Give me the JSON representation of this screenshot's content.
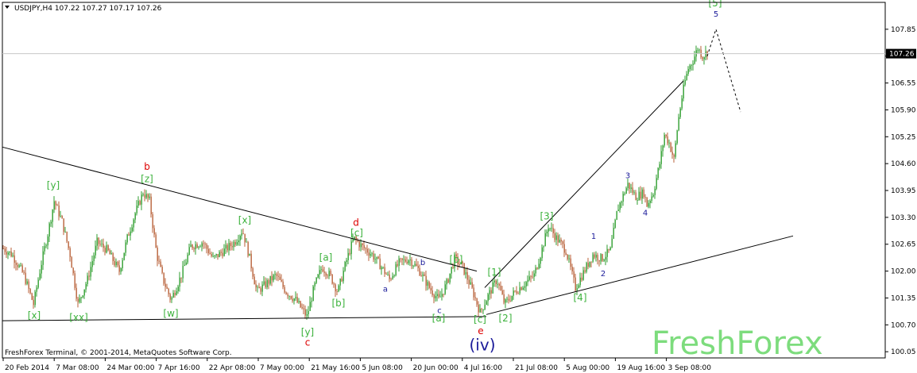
{
  "chart_data": {
    "type": "candlestick",
    "symbol_header": "USDJPY,H4  107.22 107.27 107.17 107.26",
    "copyright": "FreshForex Terminal, © 2001-2014, MetaQuotes Software Corp.",
    "brand": "FreshForex",
    "current_price": "107.26",
    "current_price_value": 107.26,
    "ylim": [
      99.9,
      108.5
    ],
    "y_ticks": [
      "107.85",
      "107.20",
      "106.55",
      "105.90",
      "105.25",
      "104.60",
      "103.95",
      "103.30",
      "102.65",
      "102.00",
      "101.35",
      "100.70",
      "100.05"
    ],
    "y_tick_values": [
      107.85,
      107.2,
      106.55,
      105.9,
      105.25,
      104.6,
      103.95,
      103.3,
      102.65,
      102.0,
      101.35,
      100.7,
      100.05
    ],
    "x_ticks": [
      "20 Feb 2014",
      "7 Mar 08:00",
      "24 Mar 00:00",
      "7 Apr 16:00",
      "22 Apr 08:00",
      "7 May 00:00",
      "21 May 16:00",
      "5 Jun 08:00",
      "20 Jun 00:00",
      "4 Jul 16:00",
      "21 Jul 08:00",
      "5 Aug 00:00",
      "19 Aug 16:00",
      "3 Sep 08:00"
    ],
    "price_path": [
      [
        0,
        102.6
      ],
      [
        15,
        102.4
      ],
      [
        30,
        101.9
      ],
      [
        42,
        101.2
      ],
      [
        52,
        102.2
      ],
      [
        60,
        102.9
      ],
      [
        68,
        103.7
      ],
      [
        78,
        103.2
      ],
      [
        88,
        102.4
      ],
      [
        98,
        101.2
      ],
      [
        110,
        101.8
      ],
      [
        122,
        102.7
      ],
      [
        135,
        102.5
      ],
      [
        150,
        102.0
      ],
      [
        160,
        102.8
      ],
      [
        170,
        103.4
      ],
      [
        180,
        103.9
      ],
      [
        188,
        103.7
      ],
      [
        197,
        102.4
      ],
      [
        205,
        101.8
      ],
      [
        215,
        101.3
      ],
      [
        228,
        101.9
      ],
      [
        240,
        102.6
      ],
      [
        255,
        102.7
      ],
      [
        268,
        102.3
      ],
      [
        282,
        102.5
      ],
      [
        295,
        102.7
      ],
      [
        305,
        103.0
      ],
      [
        313,
        102.4
      ],
      [
        323,
        101.5
      ],
      [
        335,
        101.7
      ],
      [
        347,
        101.9
      ],
      [
        360,
        101.5
      ],
      [
        372,
        101.3
      ],
      [
        386,
        100.9
      ],
      [
        395,
        101.6
      ],
      [
        405,
        102.1
      ],
      [
        415,
        101.9
      ],
      [
        425,
        101.5
      ],
      [
        435,
        102.2
      ],
      [
        445,
        102.8
      ],
      [
        455,
        102.6
      ],
      [
        468,
        102.4
      ],
      [
        480,
        102.1
      ],
      [
        490,
        101.8
      ],
      [
        502,
        102.2
      ],
      [
        515,
        102.3
      ],
      [
        528,
        102.0
      ],
      [
        540,
        101.6
      ],
      [
        552,
        101.3
      ],
      [
        562,
        101.7
      ],
      [
        572,
        102.3
      ],
      [
        582,
        102.1
      ],
      [
        595,
        101.5
      ],
      [
        604,
        101.0
      ],
      [
        614,
        101.4
      ],
      [
        625,
        101.8
      ],
      [
        635,
        101.2
      ],
      [
        648,
        101.5
      ],
      [
        660,
        101.7
      ],
      [
        672,
        101.9
      ],
      [
        680,
        102.4
      ],
      [
        690,
        103.1
      ],
      [
        700,
        102.8
      ],
      [
        712,
        102.5
      ],
      [
        724,
        101.6
      ],
      [
        735,
        102.0
      ],
      [
        746,
        102.4
      ],
      [
        757,
        102.3
      ],
      [
        768,
        102.5
      ],
      [
        777,
        103.5
      ],
      [
        790,
        104.1
      ],
      [
        800,
        103.8
      ],
      [
        810,
        103.9
      ],
      [
        814,
        103.6
      ],
      [
        822,
        103.9
      ],
      [
        830,
        104.6
      ],
      [
        836,
        105.3
      ],
      [
        842,
        105.1
      ],
      [
        848,
        104.7
      ],
      [
        853,
        105.6
      ],
      [
        858,
        106.2
      ],
      [
        862,
        106.6
      ],
      [
        866,
        106.9
      ],
      [
        872,
        107.1
      ],
      [
        878,
        107.4
      ],
      [
        884,
        107.2
      ],
      [
        890,
        107.3
      ]
    ],
    "projection": [
      [
        890,
        107.2
      ],
      [
        901,
        107.85
      ],
      [
        932,
        105.85
      ]
    ],
    "trendlines": [
      {
        "name": "upper-triangle-line",
        "from": [
          3,
          105.0
        ],
        "to": [
          600,
          102.0
        ]
      },
      {
        "name": "lower-triangle-line",
        "from": [
          3,
          100.8
        ],
        "to": [
          612,
          100.9
        ]
      },
      {
        "name": "rising-support-line",
        "from": [
          612,
          100.95
        ],
        "to": [
          998,
          102.85
        ]
      },
      {
        "name": "rising-channel-line",
        "from": [
          610,
          101.6
        ],
        "to": [
          860,
          106.6
        ]
      }
    ],
    "wave_labels": [
      {
        "text": "[y]",
        "x": 67,
        "y": 104.0,
        "color": "#3cb23c",
        "size": "m"
      },
      {
        "text": "[x]",
        "x": 43,
        "y": 100.85,
        "color": "#3cb23c",
        "size": "m"
      },
      {
        "text": "[xx]",
        "x": 99,
        "y": 100.8,
        "color": "#3cb23c",
        "size": "m"
      },
      {
        "text": "b",
        "x": 185,
        "y": 104.45,
        "color": "#dd0000",
        "size": "m"
      },
      {
        "text": "[z]",
        "x": 185,
        "y": 104.15,
        "color": "#3cb23c",
        "size": "m"
      },
      {
        "text": "[w]",
        "x": 215,
        "y": 100.9,
        "color": "#3cb23c",
        "size": "m"
      },
      {
        "text": "[x]",
        "x": 308,
        "y": 103.15,
        "color": "#3cb23c",
        "size": "m"
      },
      {
        "text": "d",
        "x": 448,
        "y": 103.1,
        "color": "#dd0000",
        "size": "m"
      },
      {
        "text": "[c]",
        "x": 449,
        "y": 102.85,
        "color": "#3cb23c",
        "size": "m"
      },
      {
        "text": "[a]",
        "x": 410,
        "y": 102.25,
        "color": "#3cb23c",
        "size": "m"
      },
      {
        "text": "[b]",
        "x": 426,
        "y": 101.15,
        "color": "#3cb23c",
        "size": "m"
      },
      {
        "text": "[y]",
        "x": 387,
        "y": 100.45,
        "color": "#3cb23c",
        "size": "m"
      },
      {
        "text": "c",
        "x": 387,
        "y": 100.2,
        "color": "#dd0000",
        "size": "m"
      },
      {
        "text": "a",
        "x": 485,
        "y": 101.5,
        "color": "#1a1a99",
        "size": "s"
      },
      {
        "text": "b",
        "x": 532,
        "y": 102.15,
        "color": "#1a1a99",
        "size": "s"
      },
      {
        "text": "c",
        "x": 553,
        "y": 100.98,
        "color": "#1a1a99",
        "size": "s"
      },
      {
        "text": "[a]",
        "x": 552,
        "y": 100.78,
        "color": "#3cb23c",
        "size": "m"
      },
      {
        "text": "[b]",
        "x": 574,
        "y": 102.2,
        "color": "#3cb23c",
        "size": "m"
      },
      {
        "text": "[c]",
        "x": 604,
        "y": 100.75,
        "color": "#3cb23c",
        "size": "m"
      },
      {
        "text": "e",
        "x": 605,
        "y": 100.48,
        "color": "#dd0000",
        "size": "m"
      },
      {
        "text": "(iv)",
        "x": 607,
        "y": 100.08,
        "color": "#1a1a99",
        "size": "l"
      },
      {
        "text": "[1]",
        "x": 622,
        "y": 101.9,
        "color": "#3cb23c",
        "size": "m"
      },
      {
        "text": "[2]",
        "x": 636,
        "y": 100.78,
        "color": "#3cb23c",
        "size": "m"
      },
      {
        "text": "[3]",
        "x": 688,
        "y": 103.25,
        "color": "#3cb23c",
        "size": "m"
      },
      {
        "text": "[4]",
        "x": 730,
        "y": 101.28,
        "color": "#3cb23c",
        "size": "m"
      },
      {
        "text": "1",
        "x": 747,
        "y": 102.78,
        "color": "#1a1a99",
        "size": "s"
      },
      {
        "text": "2",
        "x": 759,
        "y": 101.88,
        "color": "#1a1a99",
        "size": "s"
      },
      {
        "text": "3",
        "x": 790,
        "y": 104.25,
        "color": "#1a1a99",
        "size": "s"
      },
      {
        "text": "4",
        "x": 812,
        "y": 103.35,
        "color": "#1a1a99",
        "size": "s"
      },
      {
        "text": "[5]",
        "x": 900,
        "y": 108.4,
        "color": "#3cb23c",
        "size": "m"
      },
      {
        "text": "5",
        "x": 901,
        "y": 108.15,
        "color": "#1a1a99",
        "size": "s"
      }
    ],
    "colors": {
      "bull": "#2f9e2f",
      "bear": "#b8623a",
      "axis": "#000000",
      "wave_green": "#3cb23c",
      "wave_red": "#dd0000",
      "wave_blue": "#1a1a99",
      "brand": "#7ddc7d"
    }
  }
}
